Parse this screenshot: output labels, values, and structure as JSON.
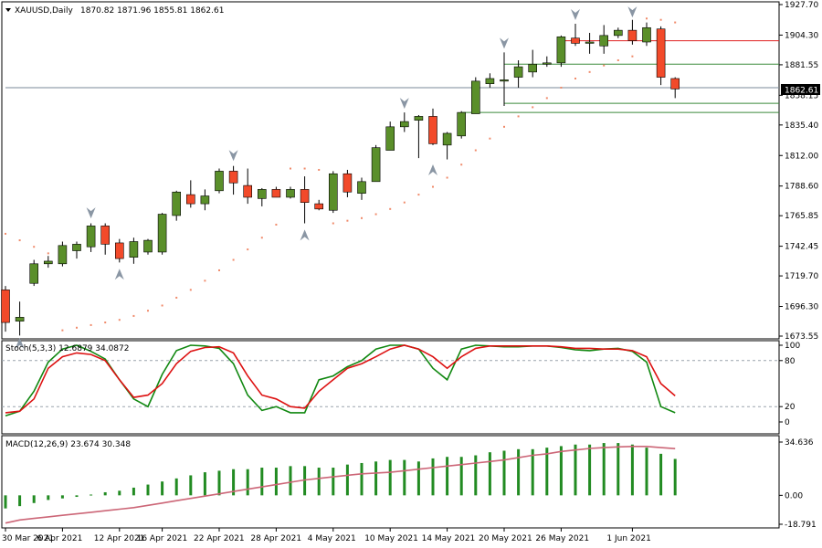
{
  "header": {
    "symbol": "XAUUSD,Daily",
    "ohlc": "1870.82 1871.96 1855.81 1862.61"
  },
  "price_scale": {
    "ticks": [
      "1927.70",
      "1904.30",
      "1881.55",
      "1858.15",
      "1835.40",
      "1812.00",
      "1788.60",
      "1765.85",
      "1742.45",
      "1719.70",
      "1696.30",
      "1673.55"
    ],
    "current_price_label": "1862.61"
  },
  "stoch_panel": {
    "label": "Stoch(5,3,3) 12.6879 34.0872",
    "ticks": [
      "100",
      "80",
      "20",
      "0"
    ]
  },
  "macd_panel": {
    "label": "MACD(12,26,9) 23.674 30.348",
    "ticks": [
      "34.636",
      "0.00",
      "-18.791"
    ]
  },
  "date_labels": [
    "30 Mar 2021",
    "6 Apr 2021",
    "12 Apr 2021",
    "16 Apr 2021",
    "22 Apr 2021",
    "28 Apr 2021",
    "4 May 2021",
    "10 May 2021",
    "14 May 2021",
    "20 May 2021",
    "26 May 2021",
    "1 Jun 2021"
  ],
  "colors": {
    "bull": "#5a8f2a",
    "bear": "#f24a2a",
    "stoch_main": "#118811",
    "stoch_signal": "#dd1111",
    "macd_hist": "#228b22",
    "macd_signal": "#cc6677",
    "psar": "#f08a6a",
    "level_red": "#e02020",
    "level_green": "#3a8a3a"
  },
  "chart_data": {
    "type": "candlestick",
    "symbol": "XAUUSD",
    "timeframe": "Daily",
    "ylim": [
      1673.55,
      1927.7
    ],
    "candles": [
      {
        "o": 1709,
        "h": 1712,
        "l": 1677,
        "c": 1684
      },
      {
        "o": 1685,
        "h": 1700,
        "l": 1674,
        "c": 1688
      },
      {
        "o": 1714,
        "h": 1732,
        "l": 1712,
        "c": 1729
      },
      {
        "o": 1729,
        "h": 1735,
        "l": 1726,
        "c": 1731
      },
      {
        "o": 1729,
        "h": 1746,
        "l": 1727,
        "c": 1743
      },
      {
        "o": 1739,
        "h": 1746,
        "l": 1733,
        "c": 1744
      },
      {
        "o": 1742,
        "h": 1760,
        "l": 1738,
        "c": 1758
      },
      {
        "o": 1758,
        "h": 1760,
        "l": 1736,
        "c": 1744
      },
      {
        "o": 1745,
        "h": 1748,
        "l": 1730,
        "c": 1733
      },
      {
        "o": 1734,
        "h": 1749,
        "l": 1729,
        "c": 1746
      },
      {
        "o": 1738,
        "h": 1748,
        "l": 1736,
        "c": 1747
      },
      {
        "o": 1738,
        "h": 1768,
        "l": 1736,
        "c": 1767
      },
      {
        "o": 1766,
        "h": 1785,
        "l": 1762,
        "c": 1784
      },
      {
        "o": 1782,
        "h": 1793,
        "l": 1772,
        "c": 1775
      },
      {
        "o": 1775,
        "h": 1786,
        "l": 1770,
        "c": 1781
      },
      {
        "o": 1785,
        "h": 1802,
        "l": 1783,
        "c": 1800
      },
      {
        "o": 1800,
        "h": 1804,
        "l": 1782,
        "c": 1791
      },
      {
        "o": 1789,
        "h": 1802,
        "l": 1775,
        "c": 1780
      },
      {
        "o": 1779,
        "h": 1787,
        "l": 1773,
        "c": 1786
      },
      {
        "o": 1786,
        "h": 1788,
        "l": 1780,
        "c": 1780
      },
      {
        "o": 1780,
        "h": 1788,
        "l": 1779,
        "c": 1786
      },
      {
        "o": 1786,
        "h": 1796,
        "l": 1760,
        "c": 1776
      },
      {
        "o": 1775,
        "h": 1778,
        "l": 1770,
        "c": 1771
      },
      {
        "o": 1770,
        "h": 1800,
        "l": 1768,
        "c": 1798
      },
      {
        "o": 1798,
        "h": 1801,
        "l": 1780,
        "c": 1784
      },
      {
        "o": 1783,
        "h": 1795,
        "l": 1778,
        "c": 1792
      },
      {
        "o": 1792,
        "h": 1820,
        "l": 1792,
        "c": 1818
      },
      {
        "o": 1816,
        "h": 1838,
        "l": 1816,
        "c": 1834
      },
      {
        "o": 1834,
        "h": 1845,
        "l": 1830,
        "c": 1838
      },
      {
        "o": 1839,
        "h": 1843,
        "l": 1810,
        "c": 1842
      },
      {
        "o": 1842,
        "h": 1848,
        "l": 1820,
        "c": 1821
      },
      {
        "o": 1820,
        "h": 1830,
        "l": 1809,
        "c": 1829
      },
      {
        "o": 1827,
        "h": 1846,
        "l": 1825,
        "c": 1845
      },
      {
        "o": 1844,
        "h": 1872,
        "l": 1844,
        "c": 1869
      },
      {
        "o": 1867,
        "h": 1875,
        "l": 1864,
        "c": 1871
      },
      {
        "o": 1869,
        "h": 1891,
        "l": 1850,
        "c": 1870
      },
      {
        "o": 1872,
        "h": 1885,
        "l": 1864,
        "c": 1880
      },
      {
        "o": 1876,
        "h": 1893,
        "l": 1872,
        "c": 1882
      },
      {
        "o": 1882,
        "h": 1888,
        "l": 1880,
        "c": 1883
      },
      {
        "o": 1883,
        "h": 1904,
        "l": 1880,
        "c": 1903
      },
      {
        "o": 1902,
        "h": 1913,
        "l": 1896,
        "c": 1898
      },
      {
        "o": 1898,
        "h": 1906,
        "l": 1890,
        "c": 1899
      },
      {
        "o": 1896,
        "h": 1912,
        "l": 1890,
        "c": 1904
      },
      {
        "o": 1904,
        "h": 1910,
        "l": 1902,
        "c": 1908
      },
      {
        "o": 1908,
        "h": 1916,
        "l": 1897,
        "c": 1900
      },
      {
        "o": 1899,
        "h": 1914,
        "l": 1896,
        "c": 1910
      },
      {
        "o": 1909,
        "h": 1911,
        "l": 1866,
        "c": 1872
      },
      {
        "o": 1871,
        "h": 1872,
        "l": 1856,
        "c": 1863
      }
    ],
    "psar": [
      1752,
      1747,
      1742,
      1737,
      1678,
      1680,
      1682,
      1684,
      1686,
      1689,
      1693,
      1697,
      1703,
      1709,
      1716,
      1724,
      1732,
      1740,
      1749,
      1759,
      1802,
      1802,
      1801,
      1760,
      1762,
      1764,
      1767,
      1771,
      1776,
      1782,
      1788,
      1795,
      1805,
      1816,
      1825,
      1834,
      1842,
      1849,
      1856,
      1864,
      1871,
      1876,
      1881,
      1885,
      1888,
      1917,
      1916,
      1914
    ],
    "up_arrows": [
      {
        "i": 1,
        "v": 1668
      },
      {
        "i": 8,
        "v": 1721
      },
      {
        "i": 21,
        "v": 1751
      },
      {
        "i": 30,
        "v": 1801
      }
    ],
    "down_arrows": [
      {
        "i": 6,
        "v": 1768
      },
      {
        "i": 16,
        "v": 1812
      },
      {
        "i": 28,
        "v": 1852
      },
      {
        "i": 35,
        "v": 1898
      },
      {
        "i": 40,
        "v": 1920
      },
      {
        "i": 44,
        "v": 1922
      }
    ],
    "horizontal_levels": [
      {
        "value": 1900,
        "color": "level_red",
        "from": 39
      },
      {
        "value": 1882,
        "color": "level_green",
        "from": 35
      },
      {
        "value": 1852,
        "color": "level_green",
        "from": 35
      },
      {
        "value": 1845,
        "color": "level_green",
        "from": 32
      },
      {
        "value": 1864,
        "color": "grid",
        "from": 0
      }
    ],
    "stochastic": {
      "params": "5,3,3",
      "ylim": [
        0,
        100
      ],
      "levels": [
        20,
        80
      ],
      "main": [
        8,
        14,
        40,
        78,
        95,
        100,
        92,
        82,
        55,
        30,
        20,
        62,
        93,
        100,
        99,
        96,
        76,
        35,
        15,
        20,
        12,
        12,
        55,
        60,
        72,
        80,
        95,
        100,
        100,
        95,
        70,
        55,
        95,
        100,
        99,
        98,
        98,
        99,
        99,
        97,
        94,
        93,
        95,
        96,
        92,
        78,
        20,
        12
      ],
      "signal": [
        12,
        14,
        30,
        70,
        85,
        90,
        88,
        80,
        55,
        32,
        35,
        50,
        76,
        92,
        97,
        98,
        90,
        60,
        35,
        30,
        20,
        18,
        40,
        55,
        70,
        76,
        85,
        95,
        100,
        95,
        85,
        70,
        85,
        96,
        99,
        99,
        99,
        99,
        99,
        98,
        96,
        96,
        95,
        95,
        93,
        85,
        50,
        34
      ]
    },
    "macd": {
      "params": "12,26,9",
      "ylim": [
        -18.791,
        34.636
      ],
      "histogram": [
        -8.5,
        -7,
        -5,
        -3,
        -2,
        -1,
        0.5,
        2,
        3,
        5,
        7,
        9,
        11,
        13,
        15,
        16,
        17,
        17,
        18,
        18,
        19,
        19,
        18,
        18,
        20,
        21,
        22,
        23,
        23,
        22,
        24,
        25,
        25,
        26,
        28,
        29,
        30,
        30,
        31,
        32,
        33,
        33,
        34,
        34,
        33,
        31,
        27,
        23.674
      ],
      "signal": [
        -18,
        -16,
        -15,
        -14,
        -13,
        -12,
        -11,
        -10,
        -9,
        -8,
        -6.5,
        -5,
        -3.5,
        -2,
        -0.5,
        1,
        2.5,
        4,
        5.5,
        7,
        8.5,
        10,
        11,
        12,
        13,
        14,
        14.5,
        15,
        16,
        17,
        18,
        19,
        20,
        21,
        22,
        23,
        24.5,
        26,
        27,
        28.5,
        29.5,
        30.5,
        31,
        31.5,
        31.8,
        31.8,
        31,
        30.348
      ]
    }
  }
}
